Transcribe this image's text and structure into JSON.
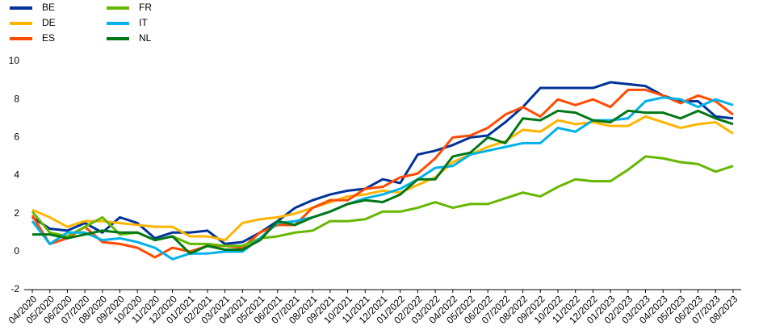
{
  "chart_data": {
    "type": "line",
    "categories": [
      "04/2020",
      "05/2020",
      "06/2020",
      "07/2020",
      "08/2020",
      "09/2020",
      "10/2020",
      "11/2020",
      "12/2020",
      "01/2021",
      "02/2021",
      "03/2021",
      "04/2021",
      "05/2021",
      "06/2021",
      "07/2021",
      "08/2021",
      "09/2021",
      "10/2021",
      "11/2021",
      "12/2021",
      "01/2022",
      "02/2022",
      "03/2022",
      "04/2022",
      "05/2022",
      "06/2022",
      "07/2022",
      "08/2022",
      "09/2022",
      "10/2022",
      "11/2022",
      "12/2022",
      "01/2023",
      "02/2023",
      "03/2023",
      "04/2023",
      "05/2023",
      "06/2023",
      "07/2023",
      "08/2023"
    ],
    "series": [
      {
        "name": "BE",
        "color": "#003299",
        "values": [
          1.8,
          1.2,
          1.1,
          1.5,
          1.0,
          1.8,
          1.5,
          0.7,
          1.0,
          1.0,
          1.1,
          0.4,
          0.5,
          1.0,
          1.6,
          2.3,
          2.7,
          3.0,
          3.2,
          3.3,
          3.8,
          3.6,
          5.1,
          5.3,
          5.6,
          6.0,
          6.1,
          6.8,
          7.6,
          8.6,
          8.6,
          8.6,
          8.6,
          8.9,
          8.8,
          8.7,
          8.2,
          7.9,
          7.9,
          7.1,
          7.0
        ]
      },
      {
        "name": "DE",
        "color": "#ffb400",
        "values": [
          2.2,
          1.8,
          1.3,
          1.6,
          1.6,
          1.5,
          1.4,
          1.3,
          1.3,
          0.8,
          0.8,
          0.6,
          1.5,
          1.7,
          1.8,
          2.0,
          2.3,
          2.6,
          2.9,
          3.0,
          3.2,
          3.1,
          3.5,
          3.9,
          4.7,
          5.1,
          5.5,
          5.8,
          6.4,
          6.3,
          6.9,
          6.7,
          6.8,
          6.6,
          6.6,
          7.1,
          6.8,
          6.5,
          6.7,
          6.8,
          6.2
        ]
      },
      {
        "name": "ES",
        "color": "#ff4b00",
        "values": [
          1.9,
          0.4,
          0.7,
          1.3,
          0.5,
          0.4,
          0.2,
          -0.3,
          0.2,
          0.0,
          0.3,
          0.3,
          0.2,
          1.0,
          1.4,
          1.4,
          2.3,
          2.7,
          2.7,
          3.3,
          3.4,
          3.9,
          4.1,
          4.9,
          6.0,
          6.1,
          6.5,
          7.2,
          7.6,
          7.1,
          8.0,
          7.7,
          8.0,
          7.6,
          8.5,
          8.5,
          8.2,
          7.8,
          8.2,
          7.9,
          7.2
        ]
      },
      {
        "name": "FR",
        "color": "#65b800",
        "values": [
          2.1,
          1.0,
          0.8,
          1.3,
          1.8,
          0.9,
          1.0,
          0.6,
          0.8,
          0.4,
          0.4,
          0.3,
          0.3,
          0.7,
          0.8,
          1.0,
          1.1,
          1.6,
          1.6,
          1.7,
          2.1,
          2.1,
          2.3,
          2.6,
          2.3,
          2.5,
          2.5,
          2.8,
          3.1,
          2.9,
          3.4,
          3.8,
          3.7,
          3.7,
          4.3,
          5.0,
          4.9,
          4.7,
          4.6,
          4.2,
          4.5
        ]
      },
      {
        "name": "IT",
        "color": "#00b1ea",
        "values": [
          1.6,
          0.4,
          1.0,
          1.0,
          0.6,
          0.7,
          0.5,
          0.2,
          -0.4,
          -0.1,
          -0.1,
          0.0,
          0.0,
          0.7,
          1.5,
          1.6,
          1.8,
          2.1,
          2.5,
          2.8,
          3.0,
          3.3,
          3.8,
          4.4,
          4.5,
          5.1,
          5.3,
          5.5,
          5.7,
          5.7,
          6.5,
          6.3,
          6.9,
          6.9,
          7.0,
          7.9,
          8.1,
          8.0,
          7.6,
          8.0,
          7.7
        ]
      },
      {
        "name": "NL",
        "color": "#007816",
        "values": [
          0.9,
          0.9,
          0.7,
          0.9,
          1.1,
          1.0,
          1.0,
          0.6,
          0.8,
          -0.1,
          0.3,
          0.1,
          0.1,
          0.6,
          1.6,
          1.4,
          1.8,
          2.1,
          2.5,
          2.7,
          2.6,
          3.0,
          3.8,
          3.8,
          5.0,
          5.2,
          6.0,
          5.7,
          7.0,
          6.9,
          7.4,
          7.3,
          6.9,
          6.8,
          7.4,
          7.3,
          7.3,
          7.0,
          7.4,
          7.0,
          6.7
        ]
      }
    ],
    "ylim": [
      -2,
      10
    ],
    "yticks": [
      -2,
      0,
      2,
      4,
      6,
      8,
      10
    ],
    "grid": false,
    "legend": "top-left"
  }
}
